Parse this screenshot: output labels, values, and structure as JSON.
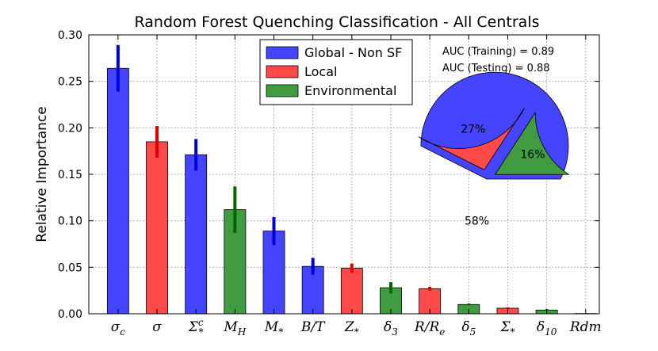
{
  "chart_data": {
    "type": "bar",
    "title": "Random Forest Quenching Classification - All Centrals",
    "xlabel": "",
    "ylabel": "Relative Importance",
    "ylim": [
      0,
      0.3
    ],
    "yticks": [
      "0.00",
      "0.05",
      "0.10",
      "0.15",
      "0.20",
      "0.25",
      "0.30"
    ],
    "ytick_values": [
      0,
      0.05,
      0.1,
      0.15,
      0.2,
      0.25,
      0.3
    ],
    "grid": true,
    "legend_position": "top-center",
    "groups": [
      {
        "name": "Global - Non SF",
        "color": "#4545ff",
        "error_color": "#0000dd"
      },
      {
        "name": "Local",
        "color": "#ff4a4a",
        "error_color": "#dd0000"
      },
      {
        "name": "Environmental",
        "color": "#419c41",
        "error_color": "#006600"
      }
    ],
    "bars": [
      {
        "label": "σ_c",
        "base": "σ",
        "sub": "c",
        "sup": "",
        "value": 0.264,
        "err": 0.025,
        "group": 0
      },
      {
        "label": "σ",
        "base": "σ",
        "sub": "",
        "sup": "",
        "value": 0.185,
        "err": 0.017,
        "group": 1
      },
      {
        "label": "Σ^c_*",
        "base": "Σ",
        "sub": "*",
        "sup": "c",
        "value": 0.171,
        "err": 0.017,
        "group": 0
      },
      {
        "label": "M_H",
        "base": "M",
        "sub": "H",
        "sup": "",
        "value": 0.112,
        "err": 0.025,
        "group": 2
      },
      {
        "label": "M_*",
        "base": "M",
        "sub": "*",
        "sup": "",
        "value": 0.089,
        "err": 0.015,
        "group": 0
      },
      {
        "label": "B/T",
        "base": "B/T",
        "sub": "",
        "sup": "",
        "value": 0.051,
        "err": 0.009,
        "group": 0
      },
      {
        "label": "Z_*",
        "base": "Z",
        "sub": "*",
        "sup": "",
        "value": 0.049,
        "err": 0.005,
        "group": 1
      },
      {
        "label": "δ_3",
        "base": "δ",
        "sub": "3",
        "sup": "",
        "value": 0.028,
        "err": 0.006,
        "group": 2
      },
      {
        "label": "R/R_e",
        "base": "R/R",
        "sub": "e",
        "sup": "",
        "value": 0.027,
        "err": 0.002,
        "group": 1
      },
      {
        "label": "δ_5",
        "base": "δ",
        "sub": "5",
        "sup": "",
        "value": 0.01,
        "err": 0.001,
        "group": 2
      },
      {
        "label": "Σ_*",
        "base": "Σ",
        "sub": "*",
        "sup": "",
        "value": 0.006,
        "err": 0.001,
        "group": 1
      },
      {
        "label": "δ_10",
        "base": "δ",
        "sub": "10",
        "sup": "",
        "value": 0.004,
        "err": 0.001,
        "group": 2
      },
      {
        "label": "Rdm",
        "base": "Rdm",
        "sub": "",
        "sup": "",
        "value": 0.0003,
        "err": 0.0,
        "group": 2
      }
    ],
    "annotations": {
      "auc_training": "AUC (Training) = 0.89",
      "auc_testing": "AUC (Testing) = 0.88"
    },
    "pie": {
      "slices": [
        {
          "name": "Global - Non SF",
          "value": 58,
          "label": "58%",
          "color": "#4545ff"
        },
        {
          "name": "Local",
          "value": 27,
          "label": "27%",
          "color": "#ff4a4a"
        },
        {
          "name": "Environmental",
          "value": 16,
          "label": "16%",
          "color": "#419c41"
        }
      ]
    }
  }
}
